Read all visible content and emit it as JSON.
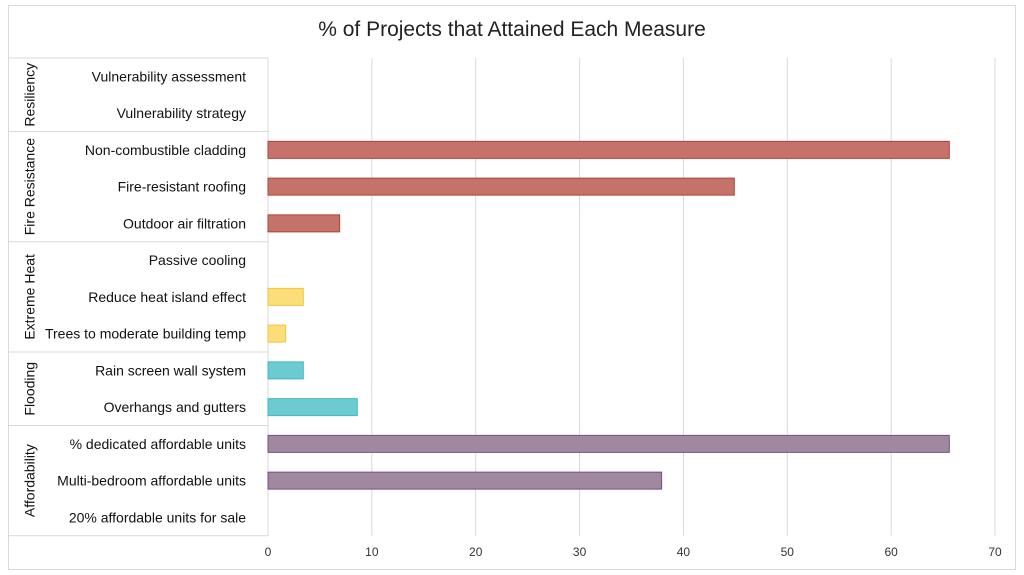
{
  "chart_data": {
    "type": "bar",
    "orientation": "horizontal",
    "title": "% of Projects that Attained Each Measure",
    "xlim": [
      0,
      70
    ],
    "x_ticks": [
      0,
      10,
      20,
      30,
      40,
      50,
      60,
      70
    ],
    "grid": true,
    "legend": "none",
    "groups": [
      {
        "name": "Resiliency",
        "color": "#c5736a",
        "border": "#b0413a",
        "categories": [
          "Vulnerability assessment",
          "Vulnerability strategy"
        ],
        "values": [
          0,
          0
        ]
      },
      {
        "name": "Fire Resistance",
        "color": "#c5736a",
        "border": "#b0413a",
        "categories": [
          "Non-combustible cladding",
          "Fire-resistant roofing",
          "Outdoor air filtration"
        ],
        "values": [
          65.6,
          44.9,
          6.9
        ]
      },
      {
        "name": "Extreme Heat",
        "color": "#fbdd7a",
        "border": "#f2c53d",
        "categories": [
          "Passive cooling",
          "Reduce heat island effect",
          "Trees to moderate building temp"
        ],
        "values": [
          0,
          3.4,
          1.7
        ]
      },
      {
        "name": "Flooding",
        "color": "#6ccbd1",
        "border": "#3fb9c2",
        "categories": [
          "Rain screen wall system",
          "Overhangs and gutters"
        ],
        "values": [
          3.4,
          8.6
        ]
      },
      {
        "name": "Affordability",
        "color": "#a0889e",
        "border": "#7a4d8c",
        "categories": [
          "% dedicated affordable units",
          "Multi-bedroom affordable units",
          "20% affordable units for sale"
        ],
        "values": [
          65.6,
          37.9,
          0
        ]
      }
    ]
  },
  "colors": {
    "grid": "#d9d9d9",
    "frame": "#d9d9d9",
    "text": "#111111"
  }
}
